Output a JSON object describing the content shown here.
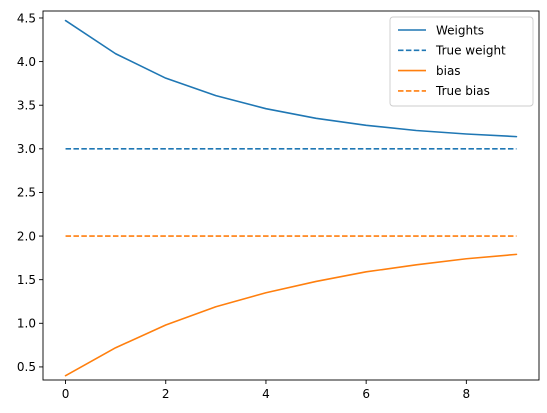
{
  "chart_data": {
    "type": "line",
    "title": "",
    "xlabel": "",
    "ylabel": "",
    "x": [
      0,
      1,
      2,
      3,
      4,
      5,
      6,
      7,
      8,
      9
    ],
    "xlim": [
      -0.45,
      9.45
    ],
    "ylim": [
      0.35,
      4.58
    ],
    "xticks": [
      0,
      2,
      4,
      6,
      8
    ],
    "yticks": [
      0.5,
      1.0,
      1.5,
      2.0,
      2.5,
      3.0,
      3.5,
      4.0,
      4.5
    ],
    "grid": false,
    "legend_position": "top-right",
    "series": [
      {
        "name": "Weights",
        "style": "solid",
        "color": "#1f77b4",
        "values": [
          4.47,
          4.09,
          3.81,
          3.61,
          3.46,
          3.35,
          3.27,
          3.21,
          3.17,
          3.14
        ]
      },
      {
        "name": "True weight",
        "style": "dashed",
        "color": "#1f77b4",
        "values": [
          3.0,
          3.0,
          3.0,
          3.0,
          3.0,
          3.0,
          3.0,
          3.0,
          3.0,
          3.0
        ]
      },
      {
        "name": "bias",
        "style": "solid",
        "color": "#ff7f0e",
        "values": [
          0.4,
          0.72,
          0.98,
          1.19,
          1.35,
          1.48,
          1.59,
          1.67,
          1.74,
          1.79
        ]
      },
      {
        "name": "True bias",
        "style": "dashed",
        "color": "#ff7f0e",
        "values": [
          2.0,
          2.0,
          2.0,
          2.0,
          2.0,
          2.0,
          2.0,
          2.0,
          2.0,
          2.0
        ]
      }
    ]
  }
}
